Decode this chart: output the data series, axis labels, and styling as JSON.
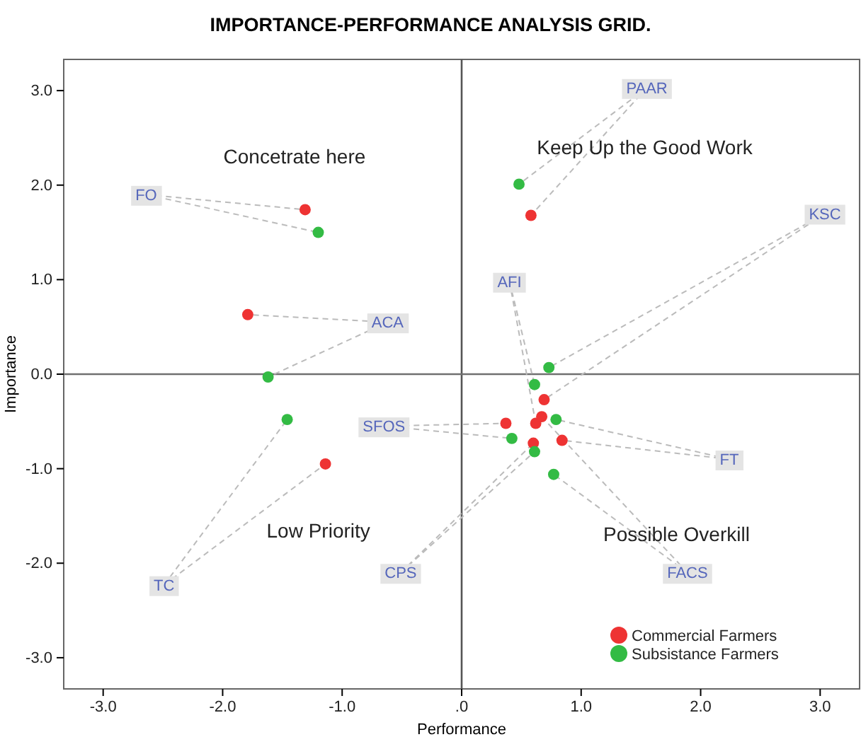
{
  "chart_data": {
    "type": "scatter",
    "title": "IMPORTANCE-PERFORMANCE ANALYSIS GRID.",
    "xlabel": "Performance",
    "ylabel": "Importance",
    "xlim": [
      -3.33,
      3.33
    ],
    "ylim": [
      -3.33,
      3.33
    ],
    "xticks": [
      {
        "value": -3,
        "label": "-3.0"
      },
      {
        "value": -2,
        "label": "-2.0"
      },
      {
        "value": -1,
        "label": "-1.0"
      },
      {
        "value": 0,
        "label": ".0"
      },
      {
        "value": 1,
        "label": "1.0"
      },
      {
        "value": 2,
        "label": "2.0"
      },
      {
        "value": 3,
        "label": "3.0"
      }
    ],
    "yticks": [
      {
        "value": -3,
        "label": "-3.0"
      },
      {
        "value": -2,
        "label": "-2.0"
      },
      {
        "value": -1,
        "label": "-1.0"
      },
      {
        "value": 0,
        "label": "0.0"
      },
      {
        "value": 1,
        "label": "1.0"
      },
      {
        "value": 2,
        "label": "2.0"
      },
      {
        "value": 3,
        "label": "3.0"
      }
    ],
    "grid": false,
    "legend": "bottom right",
    "marker": "circle",
    "ref_lines": [
      {
        "axis": "x",
        "value": 0,
        "color": "#555555"
      },
      {
        "axis": "y",
        "value": 0,
        "color": "#707070"
      }
    ],
    "series": [
      {
        "name": "Commercial Farmers",
        "color": "#ee3333",
        "x": [
          -1.31,
          -1.79,
          -1.14,
          0.58,
          0.69,
          0.62,
          0.37,
          0.84,
          0.67,
          0.6
        ],
        "values": [
          1.74,
          0.63,
          -0.95,
          1.68,
          -0.27,
          -0.52,
          -0.52,
          -0.7,
          -0.45,
          -0.73
        ]
      },
      {
        "name": "Subsistance Farmers",
        "color": "#33bb44",
        "x": [
          -1.2,
          -1.62,
          -1.46,
          0.48,
          0.73,
          0.61,
          0.42,
          0.79,
          0.77,
          0.61
        ],
        "values": [
          1.5,
          -0.03,
          -0.48,
          2.01,
          0.07,
          -0.11,
          -0.68,
          -0.48,
          -1.06,
          -0.82
        ]
      }
    ],
    "annotations": [
      {
        "text": "FO",
        "x": -2.64,
        "y": 1.9
      },
      {
        "text": "ACA",
        "x": -0.62,
        "y": 0.55
      },
      {
        "text": "TC",
        "x": -2.49,
        "y": -2.23
      },
      {
        "text": "PAAR",
        "x": 1.55,
        "y": 3.03
      },
      {
        "text": "KSC",
        "x": 3.04,
        "y": 1.7
      },
      {
        "text": "AFI",
        "x": 0.4,
        "y": 0.98
      },
      {
        "text": "SFOS",
        "x": -0.65,
        "y": -0.55
      },
      {
        "text": "FT",
        "x": 2.24,
        "y": -0.9
      },
      {
        "text": "FACS",
        "x": 1.89,
        "y": -2.1
      },
      {
        "text": "CPS",
        "x": -0.51,
        "y": -2.1
      },
      "Concetrate here",
      "Keep Up the Good Work",
      "Low Priority",
      "Possible Overkill"
    ]
  }
}
